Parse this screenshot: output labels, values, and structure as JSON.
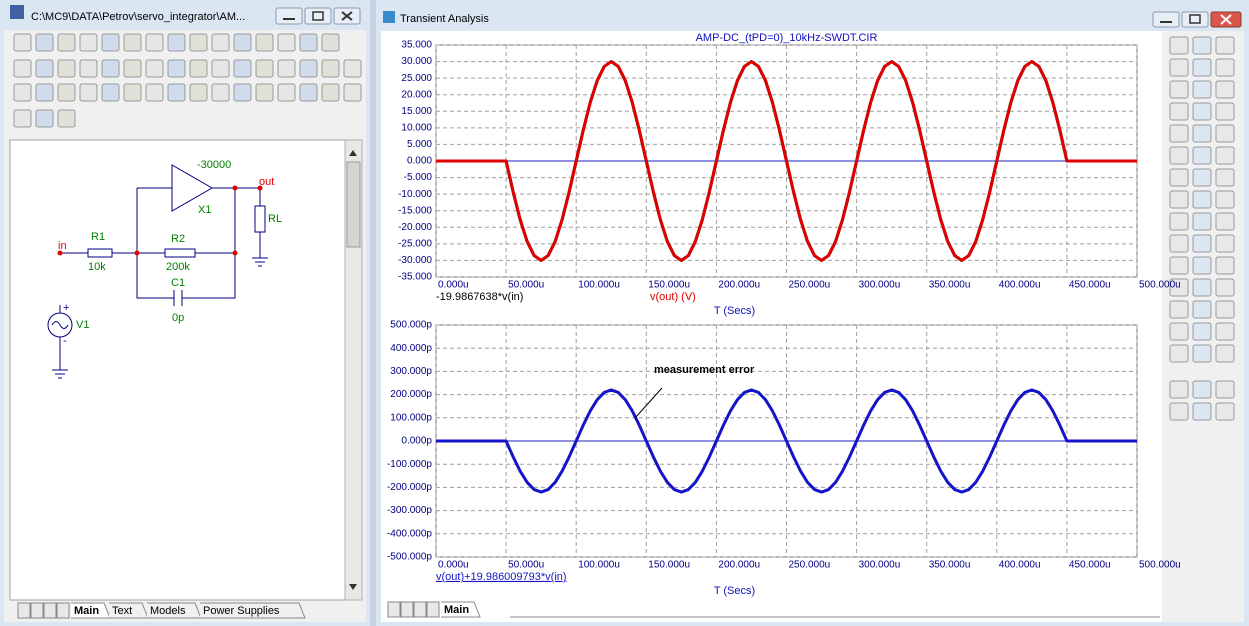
{
  "schematic_window": {
    "title": "C:\\MC9\\DATA\\Petrov\\servo_integrator\\AM...",
    "component_labels": [
      "-30000",
      "X1",
      "out",
      "RL",
      "in",
      "R1",
      "10k",
      "R2",
      "200k",
      "C1",
      "0p",
      "V1",
      "+",
      "-"
    ],
    "tabs": [
      "Main",
      "Text",
      "Models",
      "Power Supplies"
    ]
  },
  "analysis_window": {
    "title": "Transient Analysis",
    "tabs": [
      "Main"
    ]
  },
  "chart_data": [
    {
      "type": "line",
      "title": "AMP-DC_(tPD=0)_10kHz-SWDT.CIR",
      "x_label": "T (Secs)",
      "grid": true,
      "xlim": [
        0,
        500
      ],
      "ylim": [
        -35,
        35
      ],
      "xticks": [
        {
          "value": 0,
          "label": "0.000u"
        },
        {
          "value": 50,
          "label": "50.000u"
        },
        {
          "value": 100,
          "label": "100.000u"
        },
        {
          "value": 150,
          "label": "150.000u"
        },
        {
          "value": 200,
          "label": "200.000u"
        },
        {
          "value": 250,
          "label": "250.000u"
        },
        {
          "value": 300,
          "label": "300.000u"
        },
        {
          "value": 350,
          "label": "350.000u"
        },
        {
          "value": 400,
          "label": "400.000u"
        },
        {
          "value": 450,
          "label": "450.000u"
        },
        {
          "value": 500,
          "label": "500.000u"
        }
      ],
      "yticks": [
        {
          "value": -35,
          "label": "-35.000"
        },
        {
          "value": -30,
          "label": "-30.000"
        },
        {
          "value": -25,
          "label": "-25.000"
        },
        {
          "value": -20,
          "label": "-20.000"
        },
        {
          "value": -15,
          "label": "-15.000"
        },
        {
          "value": -10,
          "label": "-10.000"
        },
        {
          "value": -5,
          "label": "-5.000"
        },
        {
          "value": 0,
          "label": "0.000"
        },
        {
          "value": 5,
          "label": "5.000"
        },
        {
          "value": 10,
          "label": "10.000"
        },
        {
          "value": 15,
          "label": "15.000"
        },
        {
          "value": 20,
          "label": "20.000"
        },
        {
          "value": 25,
          "label": "25.000"
        },
        {
          "value": 30,
          "label": "30.000"
        },
        {
          "value": 35,
          "label": "35.000"
        }
      ],
      "x": [
        0,
        5,
        10,
        15,
        20,
        25,
        30,
        35,
        40,
        45,
        50,
        55,
        60,
        65,
        70,
        75,
        80,
        85,
        90,
        95,
        100,
        105,
        110,
        115,
        120,
        125,
        130,
        135,
        140,
        145,
        150,
        155,
        160,
        165,
        170,
        175,
        180,
        185,
        190,
        195,
        200,
        205,
        210,
        215,
        220,
        225,
        230,
        235,
        240,
        245,
        250,
        255,
        260,
        265,
        270,
        275,
        280,
        285,
        290,
        295,
        300,
        305,
        310,
        315,
        320,
        325,
        330,
        335,
        340,
        345,
        350,
        355,
        360,
        365,
        370,
        375,
        380,
        385,
        390,
        395,
        400,
        405,
        410,
        415,
        420,
        425,
        430,
        435,
        440,
        445,
        450,
        455,
        460,
        465,
        470,
        475,
        480,
        485,
        490,
        495,
        500
      ],
      "series": [
        {
          "name": "-19.9867638*v(in)",
          "color": "#000000",
          "values": [
            0,
            0,
            0,
            0,
            0,
            0,
            0,
            0,
            0,
            0,
            0,
            -9.27,
            -17.63,
            -24.27,
            -28.53,
            -30,
            -28.53,
            -24.27,
            -17.63,
            -9.27,
            0,
            9.27,
            17.63,
            24.27,
            28.53,
            30,
            28.53,
            24.27,
            17.63,
            9.27,
            0,
            -9.27,
            -17.63,
            -24.27,
            -28.53,
            -30,
            -28.53,
            -24.27,
            -17.63,
            -9.27,
            0,
            9.27,
            17.63,
            24.27,
            28.53,
            30,
            28.53,
            24.27,
            17.63,
            9.27,
            0,
            -9.27,
            -17.63,
            -24.27,
            -28.53,
            -30,
            -28.53,
            -24.27,
            -17.63,
            -9.27,
            0,
            9.27,
            17.63,
            24.27,
            28.53,
            30,
            28.53,
            24.27,
            17.63,
            9.27,
            0,
            -9.27,
            -17.63,
            -24.27,
            -28.53,
            -30,
            -28.53,
            -24.27,
            -17.63,
            -9.27,
            0,
            9.27,
            17.63,
            24.27,
            28.53,
            30,
            28.53,
            24.27,
            17.63,
            9.27,
            0,
            0,
            0,
            0,
            0,
            0,
            0,
            0,
            0,
            0,
            0
          ]
        },
        {
          "name": "v(out) (V)",
          "color": "#e00000",
          "values": [
            0,
            0,
            0,
            0,
            0,
            0,
            0,
            0,
            0,
            0,
            0,
            -9.27,
            -17.63,
            -24.27,
            -28.53,
            -30,
            -28.53,
            -24.27,
            -17.63,
            -9.27,
            0,
            9.27,
            17.63,
            24.27,
            28.53,
            30,
            28.53,
            24.27,
            17.63,
            9.27,
            0,
            -9.27,
            -17.63,
            -24.27,
            -28.53,
            -30,
            -28.53,
            -24.27,
            -17.63,
            -9.27,
            0,
            9.27,
            17.63,
            24.27,
            28.53,
            30,
            28.53,
            24.27,
            17.63,
            9.27,
            0,
            -9.27,
            -17.63,
            -24.27,
            -28.53,
            -30,
            -28.53,
            -24.27,
            -17.63,
            -9.27,
            0,
            9.27,
            17.63,
            24.27,
            28.53,
            30,
            28.53,
            24.27,
            17.63,
            9.27,
            0,
            -9.27,
            -17.63,
            -24.27,
            -28.53,
            -30,
            -28.53,
            -24.27,
            -17.63,
            -9.27,
            0,
            9.27,
            17.63,
            24.27,
            28.53,
            30,
            28.53,
            24.27,
            17.63,
            9.27,
            0,
            0,
            0,
            0,
            0,
            0,
            0,
            0,
            0,
            0,
            0
          ]
        }
      ]
    },
    {
      "type": "line",
      "x_label": "T (Secs)",
      "annotations": [
        "measurement error"
      ],
      "grid": true,
      "xlim": [
        0,
        500
      ],
      "ylim": [
        -500,
        500
      ],
      "xticks": [
        {
          "value": 0,
          "label": "0.000u"
        },
        {
          "value": 50,
          "label": "50.000u"
        },
        {
          "value": 100,
          "label": "100.000u"
        },
        {
          "value": 150,
          "label": "150.000u"
        },
        {
          "value": 200,
          "label": "200.000u"
        },
        {
          "value": 250,
          "label": "250.000u"
        },
        {
          "value": 300,
          "label": "300.000u"
        },
        {
          "value": 350,
          "label": "350.000u"
        },
        {
          "value": 400,
          "label": "400.000u"
        },
        {
          "value": 450,
          "label": "450.000u"
        },
        {
          "value": 500,
          "label": "500.000u"
        }
      ],
      "yticks": [
        {
          "value": -500,
          "label": "-500.000p"
        },
        {
          "value": -400,
          "label": "-400.000p"
        },
        {
          "value": -300,
          "label": "-300.000p"
        },
        {
          "value": -200,
          "label": "-200.000p"
        },
        {
          "value": -100,
          "label": "-100.000p"
        },
        {
          "value": 0,
          "label": "0.000p"
        },
        {
          "value": 100,
          "label": "100.000p"
        },
        {
          "value": 200,
          "label": "200.000p"
        },
        {
          "value": 300,
          "label": "300.000p"
        },
        {
          "value": 400,
          "label": "400.000p"
        },
        {
          "value": 500,
          "label": "500.000p"
        }
      ],
      "x": [
        0,
        5,
        10,
        15,
        20,
        25,
        30,
        35,
        40,
        45,
        50,
        55,
        60,
        65,
        70,
        75,
        80,
        85,
        90,
        95,
        100,
        105,
        110,
        115,
        120,
        125,
        130,
        135,
        140,
        145,
        150,
        155,
        160,
        165,
        170,
        175,
        180,
        185,
        190,
        195,
        200,
        205,
        210,
        215,
        220,
        225,
        230,
        235,
        240,
        245,
        250,
        255,
        260,
        265,
        270,
        275,
        280,
        285,
        290,
        295,
        300,
        305,
        310,
        315,
        320,
        325,
        330,
        335,
        340,
        345,
        350,
        355,
        360,
        365,
        370,
        375,
        380,
        385,
        390,
        395,
        400,
        405,
        410,
        415,
        420,
        425,
        430,
        435,
        440,
        445,
        450,
        455,
        460,
        465,
        470,
        475,
        480,
        485,
        490,
        495,
        500
      ],
      "series": [
        {
          "name": "v(out)+19.986009793*v(in)",
          "color": "#1414c8",
          "values": [
            0,
            0,
            0,
            0,
            0,
            0,
            0,
            0,
            0,
            0,
            0,
            -68,
            -129.4,
            -178,
            -209.2,
            -220,
            -209.2,
            -178,
            -129.4,
            -68,
            0,
            68,
            129.4,
            178,
            209.2,
            220,
            209.2,
            178,
            129.4,
            68,
            0,
            -68,
            -129.4,
            -178,
            -209.2,
            -220,
            -209.2,
            -178,
            -129.4,
            -68,
            0,
            68,
            129.4,
            178,
            209.2,
            220,
            209.2,
            178,
            129.4,
            68,
            0,
            -68,
            -129.4,
            -178,
            -209.2,
            -220,
            -209.2,
            -178,
            -129.4,
            -68,
            0,
            68,
            129.4,
            178,
            209.2,
            220,
            209.2,
            178,
            129.4,
            68,
            0,
            -68,
            -129.4,
            -178,
            -209.2,
            -220,
            -209.2,
            -178,
            -129.4,
            -68,
            0,
            68,
            129.4,
            178,
            209.2,
            220,
            209.2,
            178,
            129.4,
            68,
            0,
            0,
            0,
            0,
            0,
            0,
            0,
            0,
            0,
            0,
            0
          ]
        }
      ]
    }
  ]
}
